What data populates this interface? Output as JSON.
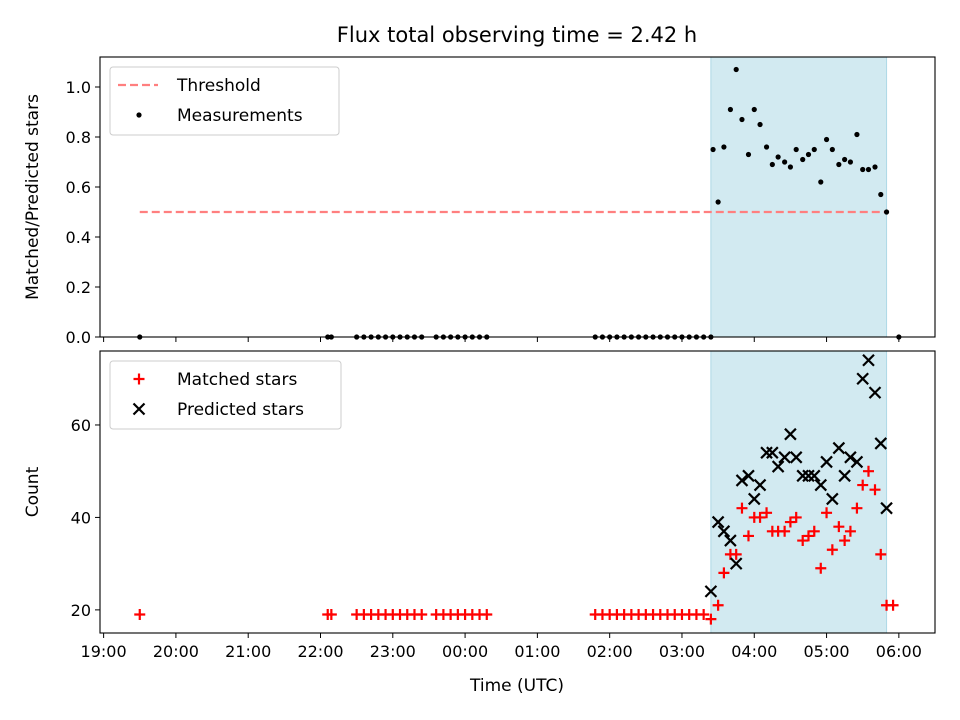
{
  "title": "Flux total observing time = 2.42 h",
  "xlabel": "Time (UTC)",
  "time_ticks": [
    "19:00",
    "20:00",
    "21:00",
    "22:00",
    "23:00",
    "00:00",
    "01:00",
    "02:00",
    "03:00",
    "04:00",
    "05:00",
    "06:00"
  ],
  "x_range_hours": [
    18.95,
    30.5
  ],
  "observing_window_hours": [
    27.4,
    29.83
  ],
  "colors": {
    "threshold": "#ff7f7f",
    "measurement": "#000000",
    "matched": "#ff0000",
    "predicted": "#000000",
    "window": "#add8e6"
  },
  "chart_data": [
    {
      "type": "scatter",
      "ylabel": "Matched/Predicted stars",
      "ylim": [
        0,
        1.12
      ],
      "yticks": [
        "0.0",
        "0.2",
        "0.4",
        "0.6",
        "0.8",
        "1.0"
      ],
      "ytick_values": [
        0,
        0.2,
        0.4,
        0.6,
        0.8,
        1.0
      ],
      "legend": {
        "placement": "top-left",
        "entries": [
          "Threshold",
          "Measurements"
        ]
      },
      "threshold": {
        "name": "Threshold",
        "y": 0.5,
        "x_range": [
          19.5,
          29.83
        ]
      },
      "series": [
        {
          "name": "Measurements",
          "points": [
            [
              19.5,
              0
            ],
            [
              22.1,
              0
            ],
            [
              22.15,
              0
            ],
            [
              22.5,
              0
            ],
            [
              22.6,
              0
            ],
            [
              22.7,
              0
            ],
            [
              22.8,
              0
            ],
            [
              22.9,
              0
            ],
            [
              23.0,
              0
            ],
            [
              23.1,
              0
            ],
            [
              23.2,
              0
            ],
            [
              23.3,
              0
            ],
            [
              23.4,
              0
            ],
            [
              23.6,
              0
            ],
            [
              23.7,
              0
            ],
            [
              23.8,
              0
            ],
            [
              23.9,
              0
            ],
            [
              24.0,
              0
            ],
            [
              24.1,
              0
            ],
            [
              24.2,
              0
            ],
            [
              24.3,
              0
            ],
            [
              25.8,
              0
            ],
            [
              25.9,
              0
            ],
            [
              26.0,
              0
            ],
            [
              26.1,
              0
            ],
            [
              26.2,
              0
            ],
            [
              26.3,
              0
            ],
            [
              26.4,
              0
            ],
            [
              26.5,
              0
            ],
            [
              26.6,
              0
            ],
            [
              26.7,
              0
            ],
            [
              26.8,
              0
            ],
            [
              26.9,
              0
            ],
            [
              27.0,
              0
            ],
            [
              27.1,
              0
            ],
            [
              27.2,
              0
            ],
            [
              27.3,
              0
            ],
            [
              27.4,
              0
            ],
            [
              27.43,
              0.75
            ],
            [
              27.5,
              0.54
            ],
            [
              27.58,
              0.76
            ],
            [
              27.67,
              0.91
            ],
            [
              27.75,
              1.07
            ],
            [
              27.83,
              0.87
            ],
            [
              27.92,
              0.73
            ],
            [
              28.0,
              0.91
            ],
            [
              28.08,
              0.85
            ],
            [
              28.17,
              0.76
            ],
            [
              28.25,
              0.69
            ],
            [
              28.33,
              0.72
            ],
            [
              28.42,
              0.7
            ],
            [
              28.5,
              0.68
            ],
            [
              28.58,
              0.75
            ],
            [
              28.67,
              0.71
            ],
            [
              28.75,
              0.73
            ],
            [
              28.83,
              0.75
            ],
            [
              28.92,
              0.62
            ],
            [
              29.0,
              0.79
            ],
            [
              29.08,
              0.75
            ],
            [
              29.17,
              0.69
            ],
            [
              29.25,
              0.71
            ],
            [
              29.33,
              0.7
            ],
            [
              29.42,
              0.81
            ],
            [
              29.5,
              0.67
            ],
            [
              29.58,
              0.67
            ],
            [
              29.67,
              0.68
            ],
            [
              29.75,
              0.57
            ],
            [
              29.83,
              0.5
            ],
            [
              30.0,
              0
            ]
          ]
        }
      ]
    },
    {
      "type": "scatter",
      "ylabel": "Count",
      "ylim": [
        15,
        76
      ],
      "yticks": [
        "20",
        "40",
        "60"
      ],
      "ytick_values": [
        20,
        40,
        60
      ],
      "legend": {
        "placement": "top-left",
        "entries": [
          "Matched stars",
          "Predicted stars"
        ]
      },
      "series": [
        {
          "name": "Matched stars",
          "marker": "plus",
          "points": [
            [
              19.5,
              19
            ],
            [
              22.1,
              19
            ],
            [
              22.15,
              19
            ],
            [
              22.5,
              19
            ],
            [
              22.6,
              19
            ],
            [
              22.7,
              19
            ],
            [
              22.8,
              19
            ],
            [
              22.9,
              19
            ],
            [
              23.0,
              19
            ],
            [
              23.1,
              19
            ],
            [
              23.2,
              19
            ],
            [
              23.3,
              19
            ],
            [
              23.4,
              19
            ],
            [
              23.6,
              19
            ],
            [
              23.7,
              19
            ],
            [
              23.8,
              19
            ],
            [
              23.9,
              19
            ],
            [
              24.0,
              19
            ],
            [
              24.1,
              19
            ],
            [
              24.2,
              19
            ],
            [
              24.3,
              19
            ],
            [
              25.8,
              19
            ],
            [
              25.9,
              19
            ],
            [
              26.0,
              19
            ],
            [
              26.1,
              19
            ],
            [
              26.2,
              19
            ],
            [
              26.3,
              19
            ],
            [
              26.4,
              19
            ],
            [
              26.5,
              19
            ],
            [
              26.6,
              19
            ],
            [
              26.7,
              19
            ],
            [
              26.8,
              19
            ],
            [
              26.9,
              19
            ],
            [
              27.0,
              19
            ],
            [
              27.1,
              19
            ],
            [
              27.2,
              19
            ],
            [
              27.3,
              19
            ],
            [
              27.4,
              18
            ],
            [
              27.5,
              21
            ],
            [
              27.58,
              28
            ],
            [
              27.67,
              32
            ],
            [
              27.75,
              32
            ],
            [
              27.83,
              42
            ],
            [
              27.92,
              36
            ],
            [
              28.0,
              40
            ],
            [
              28.08,
              40
            ],
            [
              28.17,
              41
            ],
            [
              28.25,
              37
            ],
            [
              28.33,
              37
            ],
            [
              28.42,
              37
            ],
            [
              28.5,
              39
            ],
            [
              28.58,
              40
            ],
            [
              28.67,
              35
            ],
            [
              28.75,
              36
            ],
            [
              28.83,
              37
            ],
            [
              28.92,
              29
            ],
            [
              29.0,
              41
            ],
            [
              29.08,
              33
            ],
            [
              29.17,
              38
            ],
            [
              29.25,
              35
            ],
            [
              29.33,
              37
            ],
            [
              29.42,
              42
            ],
            [
              29.5,
              47
            ],
            [
              29.58,
              50
            ],
            [
              29.67,
              46
            ],
            [
              29.75,
              32
            ],
            [
              29.83,
              21
            ],
            [
              29.92,
              21
            ]
          ]
        },
        {
          "name": "Predicted stars",
          "marker": "x",
          "points": [
            [
              27.4,
              24
            ],
            [
              27.5,
              39
            ],
            [
              27.58,
              37
            ],
            [
              27.67,
              35
            ],
            [
              27.75,
              30
            ],
            [
              27.83,
              48
            ],
            [
              27.92,
              49
            ],
            [
              28.0,
              44
            ],
            [
              28.08,
              47
            ],
            [
              28.17,
              54
            ],
            [
              28.25,
              54
            ],
            [
              28.33,
              51
            ],
            [
              28.42,
              53
            ],
            [
              28.5,
              58
            ],
            [
              28.58,
              53
            ],
            [
              28.67,
              49
            ],
            [
              28.75,
              49
            ],
            [
              28.83,
              49
            ],
            [
              28.92,
              47
            ],
            [
              29.0,
              52
            ],
            [
              29.08,
              44
            ],
            [
              29.17,
              55
            ],
            [
              29.25,
              49
            ],
            [
              29.33,
              53
            ],
            [
              29.42,
              52
            ],
            [
              29.5,
              70
            ],
            [
              29.58,
              74
            ],
            [
              29.67,
              67
            ],
            [
              29.75,
              56
            ],
            [
              29.83,
              42
            ]
          ]
        }
      ]
    }
  ]
}
